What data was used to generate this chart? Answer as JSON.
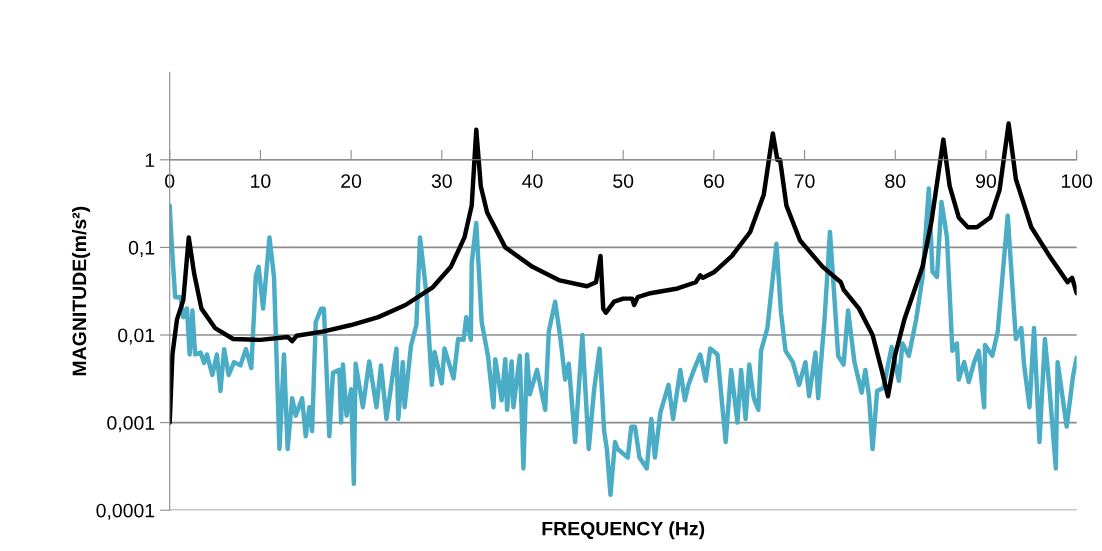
{
  "chart_data": {
    "type": "line",
    "xlabel": "FREQUENCY (Hz)",
    "ylabel": "MAGNITUDE(m/s²)",
    "log": "y",
    "grid": "y",
    "marker": "none",
    "line_style": "solid",
    "xlim": [
      0,
      100
    ],
    "xticks": [
      0,
      10,
      20,
      30,
      40,
      50,
      60,
      70,
      80,
      90,
      100
    ],
    "ylim": [
      0.0001,
      10
    ],
    "yticks": [
      {
        "value": 0.0001,
        "label": "0,0001"
      },
      {
        "value": 0.001,
        "label": "0,001"
      },
      {
        "value": 0.01,
        "label": "0,01"
      },
      {
        "value": 0.1,
        "label": "0,1"
      },
      1
    ],
    "series": [
      {
        "color": "#4bacc6",
        "x": [
          0,
          0.2,
          0.6,
          1.2,
          1.5,
          1.9,
          2.2,
          2.5,
          2.8,
          3.4,
          3.8,
          4.1,
          4.7,
          5.2,
          5.6,
          6.0,
          6.5,
          7.1,
          7.8,
          8.4,
          9.0,
          9.5,
          9.8,
          10.3,
          11.0,
          11.5,
          12.1,
          12.6,
          13.0,
          13.5,
          13.9,
          14.6,
          15.0,
          15.4,
          15.7,
          16.1,
          16.7,
          17.0,
          17.6,
          18.0,
          18.7,
          18.9,
          19.1,
          19.5,
          20.0,
          20.3,
          20.5,
          21.3,
          22.0,
          22.8,
          23.3,
          23.9,
          25.0,
          25.2,
          25.7,
          25.9,
          26.6,
          27.2,
          27.6,
          28.3,
          28.9,
          29.2,
          30.0,
          30.3,
          31.3,
          31.8,
          32.4,
          32.7,
          33.2,
          33.3,
          33.8,
          34.4,
          35.1,
          35.7,
          35.9,
          36.6,
          37.0,
          37.2,
          37.7,
          37.9,
          38.6,
          39.0,
          39.4,
          39.7,
          40.5,
          41.4,
          41.8,
          42.5,
          43.1,
          43.6,
          44.0,
          44.7,
          45.5,
          46.2,
          46.8,
          47.4,
          47.9,
          48.2,
          48.6,
          49.1,
          49.4,
          50.5,
          50.9,
          51.3,
          51.8,
          52.6,
          53.1,
          53.5,
          54.1,
          55.0,
          55.5,
          56.3,
          56.8,
          57.2,
          57.8,
          58.5,
          59.1,
          59.6,
          60.4,
          61.3,
          61.9,
          62.6,
          63.0,
          63.5,
          63.9,
          64.4,
          64.9,
          65.2,
          65.9,
          66.9,
          67.4,
          67.9,
          68.7,
          69.4,
          70.1,
          70.5,
          71.2,
          71.5,
          72.2,
          72.8,
          73.4,
          73.7,
          74.3,
          74.8,
          75.5,
          76.3,
          76.7,
          77.1,
          77.5,
          78.0,
          78.7,
          79.6,
          80.4,
          80.8,
          81.5,
          82.3,
          83.0,
          83.7,
          84.1,
          84.6,
          85.1,
          85.7,
          86.3,
          86.8,
          87.0,
          87.6,
          88.1,
          88.7,
          89.2,
          89.8,
          89.9,
          90.7,
          91.3,
          92.4,
          93.3,
          93.9,
          94.2,
          94.8,
          95.3,
          95.9,
          96.5,
          97.0,
          97.7,
          97.9,
          98.9,
          99.6,
          100
        ],
        "values": [
          0.3,
          0.12,
          0.027,
          0.027,
          0.016,
          0.02,
          0.006,
          0.019,
          0.006,
          0.0063,
          0.0048,
          0.006,
          0.0035,
          0.006,
          0.0023,
          0.0069,
          0.0035,
          0.0049,
          0.0045,
          0.0069,
          0.0042,
          0.048,
          0.06,
          0.02,
          0.13,
          0.046,
          0.0005,
          0.006,
          0.0005,
          0.0019,
          0.0012,
          0.0019,
          0.0007,
          0.0015,
          0.0008,
          0.014,
          0.02,
          0.02,
          0.0007,
          0.0037,
          0.004,
          0.001,
          0.0046,
          0.0012,
          0.0024,
          0.0002,
          0.0047,
          0.0015,
          0.005,
          0.0015,
          0.0045,
          0.0011,
          0.007,
          0.0011,
          0.0049,
          0.0015,
          0.0075,
          0.013,
          0.13,
          0.03,
          0.0027,
          0.0064,
          0.0028,
          0.007,
          0.0032,
          0.009,
          0.0088,
          0.016,
          0.0088,
          0.066,
          0.19,
          0.014,
          0.0057,
          0.0015,
          0.0053,
          0.0018,
          0.0053,
          0.0014,
          0.005,
          0.0015,
          0.0058,
          0.0003,
          0.006,
          0.0021,
          0.004,
          0.0014,
          0.011,
          0.024,
          0.0088,
          0.0031,
          0.0047,
          0.0006,
          0.01,
          0.0005,
          0.0024,
          0.007,
          0.0008,
          0.0005,
          0.00015,
          0.0006,
          0.0005,
          0.0004,
          0.0009,
          0.0009,
          0.0004,
          0.0003,
          0.0011,
          0.0004,
          0.0013,
          0.0027,
          0.0011,
          0.004,
          0.0018,
          0.0027,
          0.004,
          0.006,
          0.003,
          0.007,
          0.006,
          0.0006,
          0.004,
          0.001,
          0.004,
          0.0011,
          0.0046,
          0.0019,
          0.0014,
          0.0066,
          0.012,
          0.11,
          0.018,
          0.0066,
          0.0049,
          0.0027,
          0.0049,
          0.002,
          0.0063,
          0.0019,
          0.015,
          0.15,
          0.018,
          0.0058,
          0.0046,
          0.019,
          0.0049,
          0.0022,
          0.004,
          0.002,
          0.0005,
          0.0023,
          0.0025,
          0.0073,
          0.003,
          0.008,
          0.0058,
          0.015,
          0.045,
          0.47,
          0.053,
          0.046,
          0.33,
          0.13,
          0.0066,
          0.008,
          0.0031,
          0.0049,
          0.0029,
          0.0049,
          0.0066,
          0.0015,
          0.0077,
          0.0058,
          0.011,
          0.23,
          0.009,
          0.012,
          0.0046,
          0.0015,
          0.012,
          0.0006,
          0.009,
          0.0025,
          0.0003,
          0.0049,
          0.0009,
          0.0034,
          0.0055
        ]
      },
      {
        "color": "#000000",
        "x": [
          0,
          0.3,
          0.8,
          1.5,
          2.1,
          2.7,
          3.5,
          5,
          7,
          10,
          13,
          13.5,
          14,
          17,
          20,
          23,
          26,
          29,
          31,
          32.5,
          33.3,
          33.8,
          34.3,
          35,
          37,
          40,
          43,
          46,
          47,
          47.5,
          47.8,
          48.1,
          49,
          50,
          51,
          51.2,
          51.6,
          53,
          56,
          58,
          58.5,
          58.8,
          60,
          62,
          64,
          65.5,
          66.5,
          67,
          67.3,
          68,
          69.5,
          72,
          74,
          74.3,
          76,
          77.5,
          78.5,
          79.2,
          80,
          81,
          82,
          83,
          84,
          85.3,
          86,
          87,
          88,
          89,
          90.5,
          91.5,
          92.5,
          93.3,
          95,
          97,
          99,
          99.5,
          100
        ],
        "values": [
          0.001,
          0.006,
          0.015,
          0.025,
          0.13,
          0.05,
          0.02,
          0.012,
          0.009,
          0.0088,
          0.0095,
          0.0085,
          0.0098,
          0.011,
          0.013,
          0.016,
          0.022,
          0.035,
          0.06,
          0.13,
          0.3,
          2.2,
          0.5,
          0.25,
          0.1,
          0.06,
          0.042,
          0.036,
          0.04,
          0.08,
          0.02,
          0.018,
          0.024,
          0.026,
          0.026,
          0.022,
          0.027,
          0.03,
          0.034,
          0.04,
          0.048,
          0.045,
          0.052,
          0.08,
          0.15,
          0.4,
          2.0,
          1.0,
          1.0,
          0.3,
          0.12,
          0.06,
          0.04,
          0.033,
          0.02,
          0.01,
          0.004,
          0.002,
          0.006,
          0.015,
          0.03,
          0.06,
          0.2,
          1.7,
          0.5,
          0.22,
          0.17,
          0.17,
          0.22,
          0.45,
          2.6,
          0.6,
          0.17,
          0.08,
          0.04,
          0.045,
          0.03
        ]
      }
    ]
  }
}
